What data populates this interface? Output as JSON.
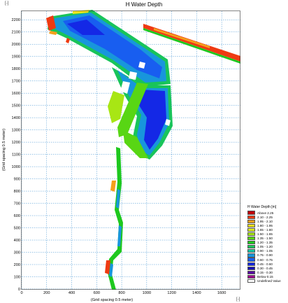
{
  "window": {
    "title": "H Water Depth",
    "corner_top_left": "[-]",
    "corner_bottom_right": "[-]"
  },
  "plot": {
    "x_axis_label": "(Grid spacing 0.5 meter)",
    "y_axis_label": "(Grid spacing 0.5 meter)",
    "x_ticks": [
      "0",
      "200",
      "400",
      "600",
      "800",
      "1000",
      "1200",
      "1400",
      "1600"
    ],
    "x_tick_values": [
      0,
      200,
      400,
      600,
      800,
      1000,
      1200,
      1400,
      1600
    ],
    "y_ticks": [
      "0",
      "100",
      "200",
      "300",
      "400",
      "500",
      "600",
      "700",
      "800",
      "900",
      "1000",
      "1100",
      "1200",
      "1300",
      "1400",
      "1500",
      "1600",
      "1700",
      "1800",
      "1900",
      "2000",
      "2100",
      "2200"
    ],
    "y_tick_values": [
      0,
      100,
      200,
      300,
      400,
      500,
      600,
      700,
      800,
      900,
      1000,
      1100,
      1200,
      1300,
      1400,
      1500,
      1600,
      1700,
      1800,
      1900,
      2000,
      2100,
      2200
    ],
    "x_range": [
      0,
      1750
    ],
    "y_range": [
      0,
      2270
    ],
    "grid": true
  },
  "legend": {
    "title": "H Water Depth [m]",
    "items": [
      {
        "label": "Above 2.25",
        "color": "#c0000a"
      },
      {
        "label": "2.10 - 2.25",
        "color": "#ef3a12"
      },
      {
        "label": "1.95 - 2.10",
        "color": "#f5a01c"
      },
      {
        "label": "1.80 - 1.95",
        "color": "#f2e21c"
      },
      {
        "label": "1.65 - 1.80",
        "color": "#e2f01e"
      },
      {
        "label": "1.50 - 1.65",
        "color": "#a8e614"
      },
      {
        "label": "1.35 - 1.50",
        "color": "#58d614"
      },
      {
        "label": "1.20 - 1.35",
        "color": "#1ec81e"
      },
      {
        "label": "1.05 - 1.20",
        "color": "#19c45a"
      },
      {
        "label": "0.90 - 1.05",
        "color": "#18c8a6"
      },
      {
        "label": "0.75 - 0.90",
        "color": "#1896dc"
      },
      {
        "label": "0.60 - 0.75",
        "color": "#185ef0"
      },
      {
        "label": "0.45 - 0.60",
        "color": "#1428e6"
      },
      {
        "label": "0.30 - 0.45",
        "color": "#1410b4"
      },
      {
        "label": "0.15 - 0.30",
        "color": "#560aa0"
      },
      {
        "label": "Below 0.15",
        "color": "#9c0a8c"
      },
      {
        "label": "Undefined Value",
        "color": "#ffffff"
      }
    ]
  }
}
